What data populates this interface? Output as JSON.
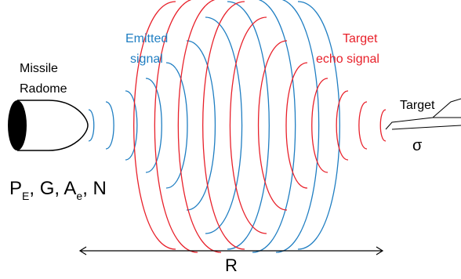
{
  "radome_label": [
    "Missile",
    "Radome"
  ],
  "emitted_label": [
    "Emitted",
    "signal"
  ],
  "echo_label": [
    "Target",
    "echo signal"
  ],
  "target_label": "Target",
  "cross_section": "σ",
  "parameters": [
    "P",
    "E",
    ", G, A",
    "e",
    ", N"
  ],
  "range_label": "R"
}
